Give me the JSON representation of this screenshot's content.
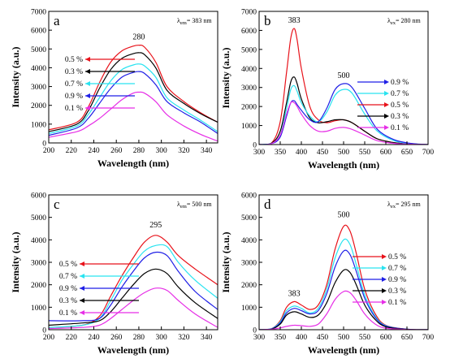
{
  "chart_data": [
    {
      "letter": "a",
      "type": "line",
      "xlabel": "Wavelength (nm)",
      "ylabel": "Intensity (a.u.)",
      "xlim": [
        200,
        350
      ],
      "ylim": [
        0,
        7000
      ],
      "xticks": [
        200,
        220,
        240,
        260,
        280,
        300,
        320,
        340
      ],
      "yticks": [
        0,
        1000,
        2000,
        3000,
        4000,
        5000,
        6000,
        7000
      ],
      "note_prefix": "λ",
      "note_sub": "em",
      "note_rest": "= 383 nm",
      "peak_labels": [
        {
          "text": "280",
          "x": 280,
          "y": 5500
        }
      ],
      "series": [
        {
          "name": "0.5 %",
          "color": "#e8121a",
          "x": [
            200,
            225,
            235,
            245,
            255,
            265,
            275,
            280,
            285,
            295,
            305,
            320,
            335,
            350
          ],
          "y": [
            700,
            1100,
            1900,
            3200,
            4300,
            4900,
            5150,
            5200,
            5100,
            4300,
            3000,
            2200,
            1600,
            1100
          ]
        },
        {
          "name": "0.3 %",
          "color": "#000000",
          "x": [
            200,
            225,
            235,
            245,
            255,
            265,
            275,
            280,
            285,
            295,
            305,
            320,
            335,
            350
          ],
          "y": [
            600,
            1000,
            1700,
            2900,
            3900,
            4500,
            4750,
            4800,
            4700,
            4000,
            2800,
            2100,
            1550,
            1100
          ]
        },
        {
          "name": "0.7 %",
          "color": "#29e3f0",
          "x": [
            200,
            225,
            235,
            245,
            255,
            265,
            275,
            280,
            285,
            295,
            305,
            320,
            335,
            350
          ],
          "y": [
            500,
            900,
            1500,
            2400,
            3300,
            3900,
            4150,
            4200,
            4100,
            3500,
            2400,
            1750,
            1200,
            600
          ]
        },
        {
          "name": "0.9 %",
          "color": "#1f1fe6",
          "x": [
            200,
            225,
            235,
            245,
            255,
            265,
            275,
            280,
            285,
            295,
            305,
            320,
            335,
            350
          ],
          "y": [
            400,
            800,
            1300,
            2100,
            2900,
            3500,
            3750,
            3800,
            3700,
            3100,
            2200,
            1600,
            1100,
            500
          ]
        },
        {
          "name": "0.1 %",
          "color": "#e62ee6",
          "x": [
            200,
            225,
            235,
            245,
            255,
            265,
            275,
            280,
            285,
            295,
            305,
            320,
            335,
            350
          ],
          "y": [
            300,
            600,
            900,
            1300,
            1800,
            2300,
            2650,
            2700,
            2650,
            2200,
            1500,
            900,
            450,
            100
          ]
        }
      ],
      "legend_order": [
        0,
        1,
        2,
        3,
        4
      ],
      "legend_side": "left"
    },
    {
      "letter": "b",
      "type": "line",
      "xlabel": "Wavelength (nm)",
      "ylabel": "Intensity (a.u.)",
      "xlim": [
        300,
        700
      ],
      "ylim": [
        0,
        7000
      ],
      "xticks": [
        300,
        350,
        400,
        450,
        500,
        550,
        600,
        650,
        700
      ],
      "yticks": [
        0,
        1000,
        2000,
        3000,
        4000,
        5000,
        6000,
        7000
      ],
      "note_prefix": "λ",
      "note_sub": "ex",
      "note_rest": "= 280 nm",
      "peak_labels": [
        {
          "text": "383",
          "x": 383,
          "y": 6400
        },
        {
          "text": "500",
          "x": 500,
          "y": 3500
        }
      ],
      "series": [
        {
          "name": "0.5 %",
          "color": "#e8121a",
          "x": [
            300,
            330,
            350,
            365,
            375,
            383,
            390,
            400,
            420,
            440,
            460,
            480,
            500,
            520,
            550,
            580,
            620,
            660,
            700
          ],
          "y": [
            0,
            100,
            1200,
            3800,
            5600,
            6100,
            5500,
            4000,
            2000,
            1300,
            1150,
            1250,
            1300,
            1150,
            700,
            300,
            100,
            30,
            0
          ]
        },
        {
          "name": "0.3 %",
          "color": "#000000",
          "x": [
            300,
            330,
            350,
            365,
            375,
            383,
            390,
            400,
            420,
            440,
            460,
            480,
            500,
            520,
            550,
            580,
            620,
            660,
            700
          ],
          "y": [
            0,
            80,
            700,
            2200,
            3300,
            3550,
            3200,
            2400,
            1400,
            1150,
            1200,
            1300,
            1300,
            1150,
            700,
            300,
            100,
            30,
            0
          ]
        },
        {
          "name": "0.7 %",
          "color": "#29e3f0",
          "x": [
            300,
            330,
            350,
            365,
            375,
            383,
            390,
            400,
            420,
            440,
            460,
            480,
            500,
            520,
            550,
            580,
            620,
            660,
            700
          ],
          "y": [
            0,
            60,
            500,
            1900,
            2900,
            3100,
            2800,
            2200,
            1500,
            1200,
            1700,
            2600,
            2900,
            2700,
            1600,
            700,
            200,
            50,
            0
          ]
        },
        {
          "name": "0.9 %",
          "color": "#1f1fe6",
          "x": [
            300,
            330,
            350,
            365,
            375,
            383,
            390,
            400,
            420,
            440,
            460,
            480,
            500,
            520,
            550,
            580,
            620,
            660,
            700
          ],
          "y": [
            0,
            50,
            400,
            1500,
            2200,
            2300,
            2100,
            1800,
            1300,
            1200,
            1900,
            2900,
            3200,
            3000,
            1900,
            800,
            250,
            60,
            0
          ]
        },
        {
          "name": "0.1 %",
          "color": "#e62ee6",
          "x": [
            300,
            330,
            350,
            365,
            375,
            383,
            390,
            400,
            420,
            440,
            460,
            480,
            500,
            520,
            550,
            580,
            620,
            660,
            700
          ],
          "y": [
            0,
            50,
            500,
            1600,
            2200,
            2200,
            2000,
            1600,
            1000,
            700,
            700,
            850,
            900,
            800,
            500,
            200,
            60,
            20,
            0
          ]
        }
      ],
      "legend_order": [
        3,
        2,
        0,
        1,
        4
      ],
      "legend_side": "right"
    },
    {
      "letter": "c",
      "type": "line",
      "xlabel": "Wavelength (nm)",
      "ylabel": "Intensity (a.u.)",
      "xlim": [
        200,
        350
      ],
      "ylim": [
        0,
        6000
      ],
      "xticks": [
        200,
        220,
        240,
        260,
        280,
        300,
        320,
        340
      ],
      "yticks": [
        0,
        1000,
        2000,
        3000,
        4000,
        5000,
        6000
      ],
      "note_prefix": "λ",
      "note_sub": "em",
      "note_rest": "= 500 nm",
      "peak_labels": [
        {
          "text": "295",
          "x": 295,
          "y": 4550
        }
      ],
      "series": [
        {
          "name": "0.5 %",
          "color": "#e8121a",
          "x": [
            200,
            230,
            245,
            255,
            265,
            275,
            285,
            295,
            305,
            315,
            330,
            350
          ],
          "y": [
            100,
            200,
            600,
            1500,
            2400,
            3200,
            3900,
            4200,
            3900,
            3300,
            2700,
            2000
          ]
        },
        {
          "name": "0.7 %",
          "color": "#29e3f0",
          "x": [
            200,
            230,
            245,
            255,
            265,
            275,
            285,
            295,
            305,
            315,
            330,
            350
          ],
          "y": [
            100,
            200,
            500,
            1300,
            2200,
            2900,
            3500,
            3750,
            3700,
            3000,
            2200,
            1400
          ]
        },
        {
          "name": "0.9 %",
          "color": "#1f1fe6",
          "x": [
            200,
            230,
            245,
            255,
            265,
            275,
            285,
            295,
            305,
            315,
            330,
            350
          ],
          "y": [
            400,
            400,
            500,
            1100,
            1900,
            2600,
            3200,
            3450,
            3300,
            2600,
            1700,
            900
          ]
        },
        {
          "name": "0.3 %",
          "color": "#000000",
          "x": [
            200,
            230,
            245,
            255,
            265,
            275,
            285,
            295,
            305,
            315,
            330,
            350
          ],
          "y": [
            200,
            300,
            400,
            800,
            1400,
            2000,
            2500,
            2700,
            2500,
            1900,
            1200,
            500
          ]
        },
        {
          "name": "0.1 %",
          "color": "#e62ee6",
          "x": [
            200,
            230,
            245,
            255,
            265,
            275,
            285,
            295,
            305,
            315,
            330,
            350
          ],
          "y": [
            50,
            100,
            200,
            500,
            900,
            1300,
            1650,
            1850,
            1750,
            1300,
            700,
            100
          ]
        }
      ],
      "legend_order": [
        0,
        1,
        2,
        3,
        4
      ],
      "legend_side": "left"
    },
    {
      "letter": "d",
      "type": "line",
      "xlabel": "Wavelength (nm)",
      "ylabel": "Intensity (a.u.)",
      "xlim": [
        300,
        700
      ],
      "ylim": [
        0,
        6000
      ],
      "xticks": [
        300,
        350,
        400,
        450,
        500,
        550,
        600,
        650,
        700
      ],
      "yticks": [
        0,
        1000,
        2000,
        3000,
        4000,
        5000,
        6000
      ],
      "note_prefix": "λ",
      "note_sub": "ex",
      "note_rest": "= 295 nm",
      "peak_labels": [
        {
          "text": "383",
          "x": 383,
          "y": 1500
        },
        {
          "text": "500",
          "x": 500,
          "y": 5000
        }
      ],
      "series": [
        {
          "name": "0.5 %",
          "color": "#e8121a",
          "x": [
            300,
            330,
            350,
            365,
            383,
            400,
            420,
            440,
            460,
            480,
            500,
            515,
            530,
            550,
            575,
            600,
            650,
            700
          ],
          "y": [
            0,
            50,
            400,
            1000,
            1250,
            1100,
            900,
            1100,
            2000,
            3600,
            4600,
            4400,
            3400,
            1800,
            700,
            200,
            20,
            0
          ]
        },
        {
          "name": "0.7 %",
          "color": "#29e3f0",
          "x": [
            300,
            330,
            350,
            365,
            383,
            400,
            420,
            440,
            460,
            480,
            500,
            515,
            530,
            550,
            575,
            600,
            650,
            700
          ],
          "y": [
            0,
            50,
            350,
            850,
            1050,
            950,
            750,
            950,
            1800,
            3200,
            4000,
            3800,
            2900,
            1550,
            600,
            180,
            20,
            0
          ]
        },
        {
          "name": "0.9 %",
          "color": "#1f1fe6",
          "x": [
            300,
            330,
            350,
            365,
            383,
            400,
            420,
            440,
            460,
            480,
            500,
            515,
            530,
            550,
            575,
            600,
            650,
            700
          ],
          "y": [
            0,
            40,
            300,
            750,
            950,
            850,
            700,
            850,
            1600,
            2800,
            3500,
            3350,
            2600,
            1400,
            550,
            160,
            20,
            0
          ]
        },
        {
          "name": "0.3 %",
          "color": "#000000",
          "x": [
            300,
            330,
            350,
            365,
            383,
            400,
            420,
            440,
            460,
            480,
            500,
            515,
            530,
            550,
            575,
            600,
            650,
            700
          ],
          "y": [
            0,
            30,
            250,
            650,
            800,
            700,
            550,
            650,
            1200,
            2100,
            2650,
            2550,
            2000,
            1100,
            450,
            130,
            15,
            0
          ]
        },
        {
          "name": "0.1 %",
          "color": "#e62ee6",
          "x": [
            300,
            330,
            350,
            365,
            383,
            400,
            420,
            440,
            460,
            480,
            500,
            515,
            530,
            550,
            575,
            600,
            650,
            700
          ],
          "y": [
            0,
            20,
            80,
            150,
            200,
            180,
            150,
            250,
            700,
            1350,
            1700,
            1650,
            1300,
            700,
            250,
            70,
            10,
            0
          ]
        }
      ],
      "legend_order": [
        0,
        1,
        2,
        3,
        4
      ],
      "legend_side": "right"
    }
  ]
}
